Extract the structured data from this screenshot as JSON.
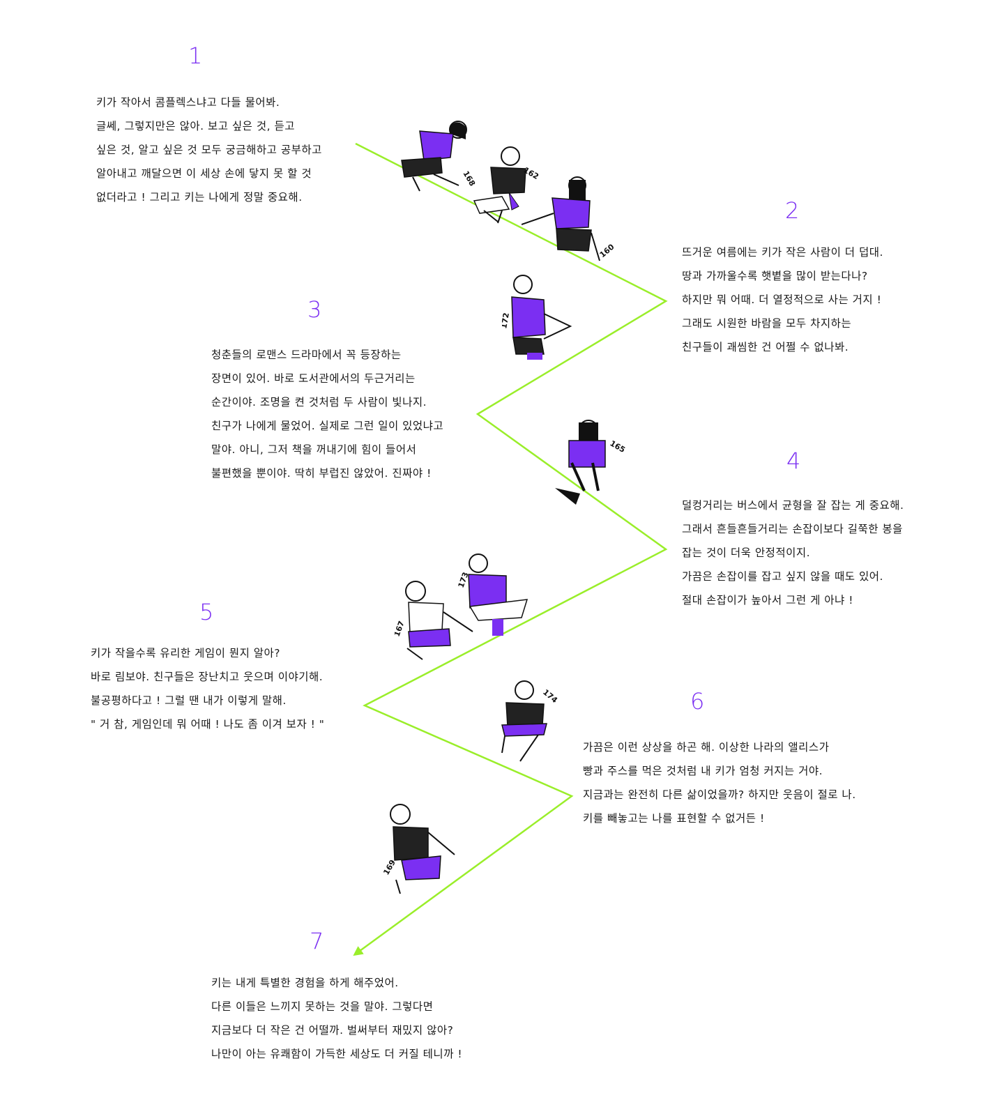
{
  "colors": {
    "accent": "#7b2ff2",
    "line": "#9aee2a",
    "text": "#1a1a1a"
  },
  "sections": [
    {
      "number": "1",
      "lines": [
        "키가 작아서 콤플렉스냐고 다들 물어봐.",
        "글쎄, 그렇지만은 않아. 보고 싶은 것, 듣고",
        "싶은 것, 알고 싶은 것 모두 궁금해하고 공부하고",
        "알아내고 깨달으면 이 세상 손에 닿지 못 할 것",
        "없더라고 ! 그리고 키는 나에게 정말 중요해."
      ]
    },
    {
      "number": "2",
      "lines": [
        "뜨거운 여름에는 키가 작은 사람이 더 덥대.",
        "땅과 가까울수록 햇볕을 많이 받는다나?",
        "하지만 뭐 어때. 더 열정적으로 사는 거지 !",
        "그래도 시원한 바람을 모두 차지하는",
        "친구들이 괘씸한 건 어쩔 수 없나봐."
      ]
    },
    {
      "number": "3",
      "lines": [
        "청춘들의 로맨스 드라마에서 꼭 등장하는",
        "장면이 있어. 바로 도서관에서의 두근거리는",
        "순간이야. 조명을 켠 것처럼 두 사람이 빛나지.",
        "친구가 나에게 물었어. 실제로 그런 일이 있었냐고",
        "말야. 아니, 그저 책을 꺼내기에 힘이 들어서",
        "불편했을 뿐이야. 딱히 부럽진 않았어. 진짜야 !"
      ]
    },
    {
      "number": "4",
      "lines": [
        "덜컹거리는 버스에서 균형을 잘 잡는 게 중요해.",
        "그래서 흔들흔들거리는 손잡이보다 길쭉한 봉을",
        "잡는 것이 더욱 안정적이지.",
        "가끔은 손잡이를 잡고 싶지 않을 때도 있어.",
        "절대 손잡이가 높아서 그런 게 아냐 !"
      ]
    },
    {
      "number": "5",
      "lines": [
        "키가 작을수록 유리한 게임이 뭔지 알아?",
        "바로 림보야. 친구들은 장난치고 웃으며 이야기해.",
        "불공평하다고 ! 그럴 땐 내가 이렇게 말해.",
        "\" 거 참, 게임인데 뭐 어때 ! 나도 좀 이겨 보자 ! \""
      ]
    },
    {
      "number": "6",
      "lines": [
        "가끔은 이런 상상을 하곤 해. 이상한 나라의 앨리스가",
        "빵과 주스를 먹은 것처럼 내 키가 엄청 커지는 거야.",
        "지금과는 완전히 다른 삶이었을까? 하지만 웃음이 절로 나.",
        "키를 빼놓고는 나를 표현할 수 없거든 !"
      ]
    },
    {
      "number": "7",
      "lines": [
        "키는 내게 특별한 경험을 하게 해주었어.",
        "다른 이들은 느끼지 못하는 것을 말야. 그렇다면",
        "지금보다 더 작은 건 어떨까. 벌써부터 재밌지 않아?",
        "나만이 아는 유쾌함이 가득한 세상도 더 커질 테니까 !"
      ]
    }
  ],
  "figure_labels": {
    "f168": "168",
    "f162": "162",
    "f160": "160",
    "f172": "172",
    "f165": "165",
    "f167": "167",
    "f173": "173",
    "f174": "174",
    "f169": "169"
  }
}
